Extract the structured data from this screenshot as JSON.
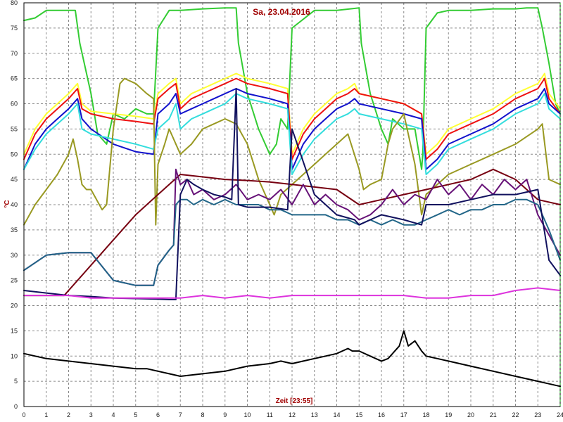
{
  "chart_data": {
    "type": "line",
    "title": "Sa, 23.04.2016",
    "xlabel": "Zeit [23:55]",
    "ylabel": "°C",
    "xlim": [
      0,
      24
    ],
    "ylim": [
      0,
      80
    ],
    "xticks": [
      0,
      1,
      2,
      3,
      4,
      5,
      6,
      7,
      8,
      9,
      10,
      11,
      12,
      13,
      14,
      15,
      16,
      17,
      18,
      19,
      20,
      21,
      22,
      23,
      24
    ],
    "yticks": [
      0,
      5,
      10,
      15,
      20,
      25,
      30,
      35,
      40,
      45,
      50,
      55,
      60,
      65,
      70,
      75,
      80
    ],
    "grid": true,
    "series": [
      {
        "color": "#33cc33",
        "x": [
          0,
          0.5,
          1,
          1.7,
          2.3,
          2.5,
          3,
          3.3,
          3.7,
          4,
          4.5,
          5,
          5.5,
          5.8,
          5.85,
          6,
          6.5,
          7,
          8,
          9,
          9.5,
          9.6,
          10,
          10.5,
          11,
          11.3,
          11.5,
          11.8,
          12,
          13,
          14,
          15,
          15.1,
          15.5,
          16,
          16.3,
          16.5,
          17,
          17.5,
          17.8,
          17.85,
          18,
          18.5,
          19,
          20,
          21,
          22,
          22.5,
          23,
          23.2,
          23.5,
          23.8,
          24
        ],
        "y": [
          76.5,
          77,
          78.5,
          78.5,
          78.5,
          72,
          62,
          54,
          52,
          58,
          57,
          59,
          58,
          58,
          62,
          75,
          78.5,
          78.5,
          78.8,
          79,
          79,
          72,
          62,
          55,
          50,
          52,
          57,
          55,
          75,
          78.5,
          78.5,
          79,
          72,
          62,
          55,
          52,
          57,
          55,
          55,
          47,
          50,
          75,
          78,
          78.5,
          78.5,
          78.8,
          78.8,
          79,
          79,
          75,
          68,
          60,
          58
        ]
      },
      {
        "color": "#ffff33",
        "x": [
          0,
          0.5,
          1,
          1.5,
          2,
          2.4,
          2.6,
          3,
          4,
          5,
          5.8,
          6,
          6.5,
          6.8,
          7,
          7.5,
          8,
          8.5,
          9,
          9.5,
          10,
          11,
          11.8,
          12,
          12.5,
          13,
          13.5,
          14,
          14.5,
          14.8,
          15,
          16,
          17,
          17.8,
          18,
          18.5,
          19,
          20,
          21,
          22,
          23,
          23.3,
          23.5,
          24
        ],
        "y": [
          50,
          55,
          58,
          60,
          62,
          64,
          60,
          58.5,
          58,
          57.5,
          57,
          62,
          64,
          65,
          60,
          62,
          63,
          64,
          65,
          66,
          65,
          64,
          63,
          50,
          55,
          58,
          60,
          62,
          63,
          64,
          62,
          61,
          60,
          58,
          50,
          52,
          55,
          57,
          59,
          62,
          64,
          66,
          62,
          59
        ]
      },
      {
        "color": "#ee1111",
        "x": [
          0,
          0.5,
          1,
          1.5,
          2,
          2.4,
          2.6,
          3,
          4,
          5,
          5.8,
          6,
          6.5,
          6.8,
          7,
          7.5,
          8,
          8.5,
          9,
          9.5,
          10,
          11,
          11.8,
          12,
          12.5,
          13,
          13.5,
          14,
          14.5,
          14.8,
          15,
          16,
          17,
          17.8,
          18,
          18.5,
          19,
          20,
          21,
          22,
          23,
          23.3,
          23.5,
          24
        ],
        "y": [
          49,
          54,
          57,
          59,
          61,
          63,
          59,
          58,
          57,
          56.5,
          56,
          61,
          63,
          64,
          59,
          61,
          62,
          63,
          64,
          65,
          64,
          63,
          62,
          49,
          54,
          57,
          59,
          61,
          62,
          63,
          62,
          61,
          60,
          58,
          49,
          51,
          54,
          56,
          58,
          61,
          63,
          65,
          61,
          58
        ]
      },
      {
        "color": "#1111cc",
        "x": [
          0,
          0.5,
          1,
          1.5,
          2,
          2.4,
          2.6,
          3,
          4,
          5,
          5.8,
          6,
          6.5,
          6.8,
          7,
          7.5,
          8,
          8.5,
          9,
          9.5,
          10,
          11,
          11.8,
          12,
          12.5,
          13,
          13.5,
          14,
          14.5,
          14.8,
          15,
          16,
          17,
          17.8,
          18,
          18.5,
          19,
          20,
          21,
          22,
          23,
          23.3,
          23.5,
          24
        ],
        "y": [
          47,
          52,
          55,
          57,
          59,
          61,
          57,
          55,
          52,
          50.5,
          50,
          58,
          60,
          62,
          58,
          59,
          60,
          61,
          62,
          63,
          62,
          61,
          60,
          47,
          52,
          55,
          57,
          59,
          60,
          61,
          60,
          59,
          58,
          57,
          47,
          49,
          52,
          54,
          56,
          59,
          61,
          63,
          60,
          58
        ]
      },
      {
        "color": "#33dddd",
        "x": [
          0,
          0.5,
          1,
          1.5,
          2,
          2.4,
          2.6,
          3,
          4,
          5,
          5.8,
          6,
          6.5,
          6.8,
          7,
          7.5,
          8,
          8.5,
          9,
          9.5,
          10,
          11,
          11.8,
          12,
          12.5,
          13,
          13.5,
          14,
          14.5,
          14.8,
          15,
          16,
          17,
          17.8,
          18,
          18.5,
          19,
          20,
          21,
          22,
          23,
          23.3,
          23.5,
          24
        ],
        "y": [
          47,
          51,
          54,
          56,
          58,
          60,
          55,
          54,
          53,
          52,
          51,
          55,
          57,
          60,
          55,
          57,
          58,
          59,
          60,
          62,
          61,
          60,
          59,
          46,
          50,
          53,
          55,
          57,
          58,
          59,
          58,
          57,
          56,
          55,
          46,
          48,
          51,
          53,
          55,
          58,
          60,
          62,
          59,
          57
        ]
      },
      {
        "color": "#999922",
        "x": [
          0,
          0.5,
          1,
          1.5,
          2,
          2.2,
          2.4,
          2.6,
          2.8,
          3,
          3.5,
          3.7,
          4,
          4.3,
          4.5,
          5,
          5.5,
          5.8,
          5.9,
          6,
          6.3,
          6.5,
          7,
          7.5,
          8,
          8.5,
          9,
          9.5,
          10,
          10.5,
          11,
          11.2,
          11.5,
          12,
          12.5,
          13,
          13.5,
          14,
          14.5,
          15,
          15.2,
          15.5,
          16,
          16.3,
          16.5,
          17,
          17.5,
          17.8,
          18,
          18.5,
          19,
          20,
          21,
          22,
          23,
          23.2,
          23.5,
          24
        ],
        "y": [
          36,
          40,
          43,
          46,
          50,
          53,
          49,
          44,
          43,
          43,
          39,
          40,
          55,
          64,
          65,
          64,
          62,
          61,
          36,
          48,
          52,
          55,
          50,
          52,
          55,
          56,
          57,
          56,
          52,
          45,
          40,
          38,
          42,
          44,
          46,
          48,
          50,
          52,
          54,
          47,
          43,
          44,
          45,
          52,
          55,
          58,
          48,
          38,
          42,
          44,
          46,
          48,
          50,
          52,
          55,
          56,
          45,
          44
        ]
      },
      {
        "color": "#770011",
        "x": [
          0,
          1,
          1.8,
          3,
          4,
          5,
          6,
          7,
          8,
          9,
          10,
          11,
          12,
          13,
          14,
          15,
          16,
          17,
          18,
          19,
          20,
          21,
          22,
          23,
          24
        ],
        "y": [
          22,
          22,
          22,
          28,
          33,
          38,
          42,
          46,
          45.5,
          45,
          44.8,
          44.5,
          44,
          43.5,
          43,
          40,
          41,
          42,
          43,
          44,
          45,
          47,
          45,
          41,
          40
        ]
      },
      {
        "color": "#661177",
        "x": [
          0,
          1,
          2,
          3,
          4,
          5,
          5.8,
          6,
          6.5,
          6.7,
          6.8,
          7,
          7.3,
          7.6,
          8,
          8.5,
          9,
          9.5,
          10,
          10.5,
          11,
          11.5,
          12,
          12.5,
          13,
          13.5,
          14,
          14.5,
          15,
          15.5,
          16,
          16.5,
          17,
          17.5,
          18,
          18.5,
          19,
          19.5,
          20,
          20.5,
          21,
          21.5,
          22,
          22.5,
          23,
          23.5,
          24
        ],
        "y": [
          27,
          30,
          30.5,
          30.5,
          25,
          24,
          24,
          28,
          31,
          32,
          47,
          44,
          45,
          42,
          43,
          41,
          42,
          44,
          41,
          42,
          41,
          43,
          40,
          44,
          40,
          42,
          40,
          39,
          37,
          38,
          40,
          43,
          40,
          42,
          41,
          45,
          42,
          44,
          41,
          44,
          42,
          45,
          43,
          45,
          38,
          34,
          30
        ]
      },
      {
        "color": "#226688",
        "x": [
          0,
          1,
          2,
          3,
          4,
          5,
          5.8,
          6,
          6.5,
          6.7,
          6.8,
          7,
          7.3,
          7.6,
          8,
          8.5,
          9,
          9.5,
          10,
          10.5,
          11,
          11.5,
          12,
          12.5,
          13,
          13.5,
          14,
          14.5,
          15,
          15.5,
          16,
          16.5,
          17,
          17.5,
          18,
          18.5,
          19,
          19.5,
          20,
          20.5,
          21,
          21.5,
          22,
          22.5,
          23,
          23.5,
          24
        ],
        "y": [
          27,
          30,
          30.5,
          30.5,
          25,
          24,
          24,
          28,
          31,
          32,
          40,
          41,
          41,
          40,
          41,
          40,
          41,
          40,
          40,
          40,
          39,
          39,
          38,
          38,
          38,
          38,
          37,
          37,
          36,
          37,
          36,
          37,
          36,
          36,
          37,
          38,
          39,
          38,
          39,
          39,
          40,
          40,
          41,
          41,
          40,
          35,
          29
        ]
      },
      {
        "color": "#11115e",
        "x": [
          0,
          1,
          2,
          3,
          4,
          5,
          6,
          6.5,
          6.8,
          7,
          7.3,
          7.6,
          8,
          8.5,
          9,
          9.3,
          9.5,
          9.6,
          10,
          10.5,
          11,
          11.8,
          12,
          13,
          14,
          14.8,
          15,
          15.5,
          16,
          17,
          17.8,
          18,
          19,
          20,
          21,
          22,
          23,
          23.5,
          24
        ],
        "y": [
          23,
          22.5,
          22,
          21.8,
          21.5,
          21.4,
          21.3,
          21.2,
          21.2,
          42,
          45,
          44,
          43,
          42,
          41.5,
          41,
          63,
          40,
          39.5,
          39.5,
          39.5,
          39,
          55,
          42,
          38,
          37,
          36,
          37,
          38,
          37,
          36,
          40,
          40,
          41,
          42,
          42,
          43,
          29,
          26
        ]
      },
      {
        "color": "#dd33dd",
        "x": [
          0,
          1,
          2,
          3,
          4,
          5,
          6,
          7,
          8,
          9,
          10,
          11,
          12,
          13,
          14,
          15,
          16,
          17,
          18,
          19,
          20,
          21,
          22,
          23,
          24
        ],
        "y": [
          22,
          22,
          22,
          21.5,
          21.5,
          21.5,
          21.5,
          21.5,
          22,
          21.5,
          22,
          21.5,
          22,
          22,
          22,
          22,
          22,
          22,
          21.5,
          21.5,
          22,
          22,
          23,
          23.5,
          23
        ]
      },
      {
        "color": "#000000",
        "x": [
          0,
          0.5,
          1,
          2,
          3,
          4,
          5,
          5.5,
          6,
          6.5,
          7,
          8,
          9,
          10,
          11,
          11.5,
          12,
          12.5,
          13,
          13.5,
          14,
          14.5,
          14.7,
          15,
          15.5,
          16,
          16.3,
          16.8,
          17,
          17.2,
          17.5,
          17.8,
          18,
          18.5,
          19,
          19.5,
          20,
          21,
          22,
          23,
          23.5,
          24
        ],
        "y": [
          10.5,
          10,
          9.5,
          9,
          8.5,
          8,
          7.5,
          7.5,
          7,
          6.5,
          6,
          6.5,
          7,
          8,
          8.5,
          9,
          8.5,
          9,
          9.5,
          10,
          10.5,
          11.5,
          11,
          11,
          10,
          9,
          9.5,
          12,
          15,
          12,
          13,
          11,
          10,
          9.5,
          9,
          8.5,
          8,
          7,
          6,
          5,
          4.5,
          4
        ]
      }
    ]
  }
}
